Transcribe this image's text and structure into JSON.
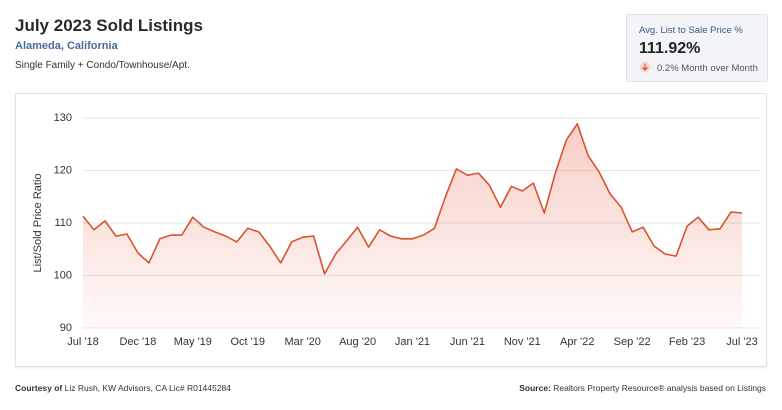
{
  "header": {
    "title": "July 2023 Sold Listings",
    "location": "Alameda, California",
    "subtitle": "Single Family + Condo/Townhouse/Apt."
  },
  "kpi": {
    "label": "Avg. List to Sale Price %",
    "value": "111.92%",
    "change": "0.2% Month over Month"
  },
  "footer": {
    "courtesy_label": "Courtesy of",
    "courtesy": "Liz Rush, KW Advisors, CA Lic# R01445284",
    "source_label": "Source:",
    "source": "Realtors Property Resource® analysis based on Listings"
  },
  "chart_data": {
    "type": "area",
    "ylabel": "List/Sold Price Ratio",
    "categories": [
      "Jul '18",
      null,
      null,
      null,
      null,
      "Dec '18",
      null,
      null,
      null,
      null,
      "May '19",
      null,
      null,
      null,
      null,
      "Oct '19",
      null,
      null,
      null,
      null,
      "Mar '20",
      null,
      null,
      null,
      null,
      "Aug '20",
      null,
      null,
      null,
      null,
      "Jan '21",
      null,
      null,
      null,
      null,
      "Jun '21",
      null,
      null,
      null,
      null,
      "Nov '21",
      null,
      null,
      null,
      null,
      "Apr '22",
      null,
      null,
      null,
      null,
      "Sep '22",
      null,
      null,
      null,
      null,
      "Feb '23",
      null,
      null,
      null,
      null,
      "Jul '23"
    ],
    "values": [
      111.3,
      108.7,
      110.4,
      107.5,
      107.9,
      104.3,
      102.4,
      107.0,
      107.7,
      107.7,
      111.1,
      109.2,
      108.3,
      107.5,
      106.4,
      109.0,
      108.3,
      105.6,
      102.4,
      106.4,
      107.3,
      107.5,
      100.3,
      104.1,
      106.6,
      109.2,
      105.4,
      108.7,
      107.5,
      107.0,
      107.0,
      107.7,
      109.0,
      115.0,
      120.3,
      119.1,
      119.5,
      117.2,
      113.0,
      117.0,
      116.1,
      117.6,
      111.9,
      119.5,
      125.8,
      128.9,
      122.8,
      119.7,
      115.5,
      113.0,
      108.3,
      109.2,
      105.6,
      104.1,
      103.7,
      109.4,
      111.1,
      108.7,
      108.9,
      112.1,
      111.9
    ],
    "color": "#d9532f",
    "ylim": [
      90,
      130
    ],
    "yticks": [
      90,
      100,
      110,
      120,
      130
    ],
    "grid": true
  }
}
